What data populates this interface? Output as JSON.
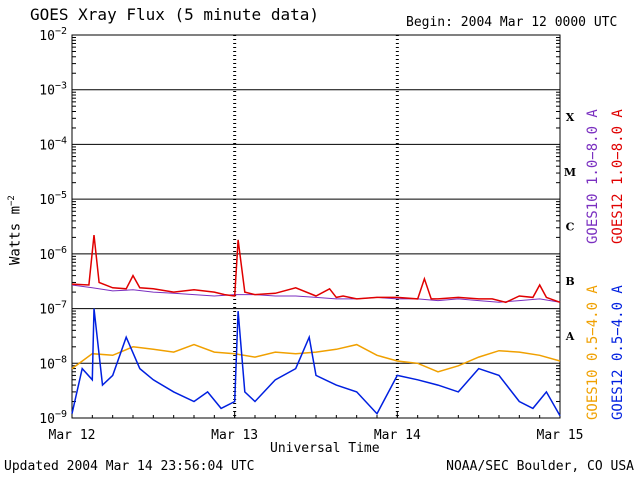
{
  "title": "GOES Xray Flux (5 minute data)",
  "begin": "Begin:  2004 Mar 12 0000 UTC",
  "updated": "Updated 2004 Mar 14 23:56:04 UTC",
  "source": "NOAA/SEC Boulder, CO USA",
  "colors": {
    "goes10_long": "#7a2fc0",
    "goes12_long": "#e00000",
    "goes10_short": "#f0a000",
    "goes12_short": "#0020e0"
  },
  "chart_data": {
    "type": "line",
    "title": "GOES Xray Flux (5 minute data)",
    "xlabel": "Universal Time",
    "ylabel": "Watts m",
    "ylabel_exponent": "−2",
    "yscale": "log",
    "ylim": [
      1e-09,
      0.01
    ],
    "xlim_days": [
      0,
      3
    ],
    "x_tick_labels": [
      "Mar 12",
      "Mar 13",
      "Mar 14",
      "Mar 15"
    ],
    "y_ticks": [
      {
        "base": "10",
        "exp": "−2",
        "value": 0.01
      },
      {
        "base": "10",
        "exp": "−3",
        "value": 0.001
      },
      {
        "base": "10",
        "exp": "−4",
        "value": 0.0001
      },
      {
        "base": "10",
        "exp": "−5",
        "value": 1e-05
      },
      {
        "base": "10",
        "exp": "−6",
        "value": 1e-06
      },
      {
        "base": "10",
        "exp": "−7",
        "value": 1e-07
      },
      {
        "base": "10",
        "exp": "−8",
        "value": 1e-08
      },
      {
        "base": "10",
        "exp": "−9",
        "value": 1e-09
      }
    ],
    "flare_classes": [
      {
        "label": "X",
        "value": 0.000316
      },
      {
        "label": "M",
        "value": 3.16e-05
      },
      {
        "label": "C",
        "value": 3.16e-06
      },
      {
        "label": "B",
        "value": 3.16e-07
      },
      {
        "label": "A",
        "value": 3.16e-08
      }
    ],
    "grid": "horizontal at each decade",
    "series": [
      {
        "name": "GOES10 1.0−8.0 A",
        "color_key": "goes10_long",
        "x": [
          "Mar 12 00:00",
          "Mar 12 03:00",
          "Mar 12 06:00",
          "Mar 12 09:00",
          "Mar 12 12:00",
          "Mar 12 15:00",
          "Mar 12 18:00",
          "Mar 12 21:00",
          "Mar 13 00:00",
          "Mar 13 03:00",
          "Mar 13 06:00",
          "Mar 13 09:00",
          "Mar 13 12:00",
          "Mar 13 15:00",
          "Mar 13 18:00",
          "Mar 13 21:00",
          "Mar 14 00:00",
          "Mar 14 03:00",
          "Mar 14 06:00",
          "Mar 14 09:00",
          "Mar 14 12:00",
          "Mar 14 15:00",
          "Mar 14 18:00",
          "Mar 14 21:00",
          "Mar 15 00:00"
        ],
        "y": [
          2.7e-07,
          2.4e-07,
          2.1e-07,
          2.2e-07,
          2e-07,
          1.9e-07,
          1.8e-07,
          1.7e-07,
          1.8e-07,
          1.8e-07,
          1.7e-07,
          1.7e-07,
          1.6e-07,
          1.5e-07,
          1.5e-07,
          1.6e-07,
          1.5e-07,
          1.5e-07,
          1.4e-07,
          1.5e-07,
          1.4e-07,
          1.3e-07,
          1.4e-07,
          1.5e-07,
          1.3e-07
        ]
      },
      {
        "name": "GOES12 1.0−8.0 A",
        "color_key": "goes12_long",
        "x": [
          "Mar 12 00:00",
          "Mar 12 02:30",
          "Mar 12 03:15",
          "Mar 12 04:00",
          "Mar 12 06:00",
          "Mar 12 08:00",
          "Mar 12 09:00",
          "Mar 12 10:00",
          "Mar 12 12:00",
          "Mar 12 15:00",
          "Mar 12 18:00",
          "Mar 12 21:00",
          "Mar 12 22:30",
          "Mar 13 00:00",
          "Mar 13 00:30",
          "Mar 13 01:30",
          "Mar 13 03:00",
          "Mar 13 06:00",
          "Mar 13 09:00",
          "Mar 13 12:00",
          "Mar 13 14:00",
          "Mar 13 15:00",
          "Mar 13 16:00",
          "Mar 13 18:00",
          "Mar 13 21:00",
          "Mar 14 00:00",
          "Mar 14 03:00",
          "Mar 14 04:00",
          "Mar 14 05:00",
          "Mar 14 06:00",
          "Mar 14 09:00",
          "Mar 14 12:00",
          "Mar 14 14:00",
          "Mar 14 16:00",
          "Mar 14 18:00",
          "Mar 14 20:00",
          "Mar 14 21:00",
          "Mar 14 22:00",
          "Mar 15 00:00"
        ],
        "y": [
          2.8e-07,
          2.7e-07,
          2.2e-06,
          3e-07,
          2.4e-07,
          2.3e-07,
          4e-07,
          2.4e-07,
          2.3e-07,
          2e-07,
          2.2e-07,
          2e-07,
          1.8e-07,
          1.7e-07,
          1.8e-06,
          2e-07,
          1.8e-07,
          1.9e-07,
          2.4e-07,
          1.7e-07,
          2.3e-07,
          1.6e-07,
          1.7e-07,
          1.5e-07,
          1.6e-07,
          1.6e-07,
          1.5e-07,
          3.5e-07,
          1.5e-07,
          1.5e-07,
          1.6e-07,
          1.5e-07,
          1.5e-07,
          1.3e-07,
          1.7e-07,
          1.6e-07,
          2.7e-07,
          1.6e-07,
          1.3e-07
        ]
      },
      {
        "name": "GOES10 0.5−4.0 A",
        "color_key": "goes10_short",
        "x": [
          "Mar 12 00:00",
          "Mar 12 03:00",
          "Mar 12 06:00",
          "Mar 12 09:00",
          "Mar 12 12:00",
          "Mar 12 15:00",
          "Mar 12 18:00",
          "Mar 12 21:00",
          "Mar 13 00:00",
          "Mar 13 03:00",
          "Mar 13 06:00",
          "Mar 13 09:00",
          "Mar 13 12:00",
          "Mar 13 15:00",
          "Mar 13 18:00",
          "Mar 13 21:00",
          "Mar 14 00:00",
          "Mar 14 03:00",
          "Mar 14 06:00",
          "Mar 14 09:00",
          "Mar 14 12:00",
          "Mar 14 15:00",
          "Mar 14 18:00",
          "Mar 14 21:00",
          "Mar 15 00:00"
        ],
        "y": [
          8e-09,
          1.5e-08,
          1.4e-08,
          2e-08,
          1.8e-08,
          1.6e-08,
          2.2e-08,
          1.6e-08,
          1.5e-08,
          1.3e-08,
          1.6e-08,
          1.5e-08,
          1.6e-08,
          1.8e-08,
          2.2e-08,
          1.4e-08,
          1.1e-08,
          1e-08,
          7e-09,
          9e-09,
          1.3e-08,
          1.7e-08,
          1.6e-08,
          1.4e-08,
          1.1e-08
        ]
      },
      {
        "name": "GOES12 0.5−4.0 A",
        "color_key": "goes12_short",
        "x": [
          "Mar 12 00:00",
          "Mar 12 01:30",
          "Mar 12 03:00",
          "Mar 12 03:15",
          "Mar 12 04:30",
          "Mar 12 06:00",
          "Mar 12 08:00",
          "Mar 12 10:00",
          "Mar 12 12:00",
          "Mar 12 15:00",
          "Mar 12 18:00",
          "Mar 12 20:00",
          "Mar 12 22:00",
          "Mar 13 00:00",
          "Mar 13 00:30",
          "Mar 13 01:30",
          "Mar 13 03:00",
          "Mar 13 06:00",
          "Mar 13 09:00",
          "Mar 13 11:00",
          "Mar 13 12:00",
          "Mar 13 15:00",
          "Mar 13 18:00",
          "Mar 13 21:00",
          "Mar 14 00:00",
          "Mar 14 03:00",
          "Mar 14 06:00",
          "Mar 14 09:00",
          "Mar 14 12:00",
          "Mar 14 15:00",
          "Mar 14 18:00",
          "Mar 14 20:00",
          "Mar 14 22:00",
          "Mar 15 00:00"
        ],
        "y": [
          1.2e-09,
          8e-09,
          5e-09,
          1e-07,
          4e-09,
          6e-09,
          3e-08,
          8e-09,
          5e-09,
          3e-09,
          2e-09,
          3e-09,
          1.5e-09,
          2e-09,
          9e-08,
          3e-09,
          2e-09,
          5e-09,
          8e-09,
          3e-08,
          6e-09,
          4e-09,
          3e-09,
          1.2e-09,
          6e-09,
          5e-09,
          4e-09,
          3e-09,
          8e-09,
          6e-09,
          2e-09,
          1.5e-09,
          3e-09,
          1.1e-09
        ]
      }
    ]
  }
}
